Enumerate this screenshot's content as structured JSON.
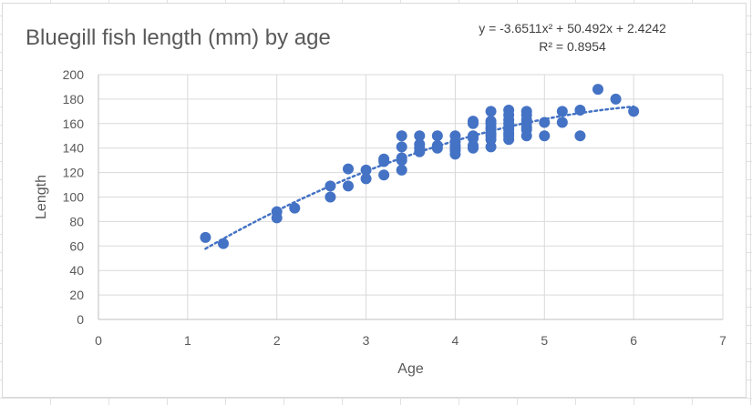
{
  "chart_data": {
    "type": "scatter",
    "title": "Bluegill fish length (mm) by age",
    "xlabel": "Age",
    "ylabel": "Length",
    "xlim": [
      0,
      7
    ],
    "ylim": [
      0,
      200
    ],
    "x_ticks": [
      "0",
      "1",
      "2",
      "3",
      "4",
      "5",
      "6",
      "7"
    ],
    "y_ticks": [
      "0",
      "20",
      "40",
      "60",
      "80",
      "100",
      "120",
      "140",
      "160",
      "180",
      "200"
    ],
    "grid": true,
    "marker_color": "#4472c4",
    "trendline": {
      "type": "polynomial",
      "coefficients": [
        -3.6511,
        50.492,
        2.4242
      ],
      "x_range": [
        1.2,
        6
      ],
      "style": "dotted",
      "color": "#4472c4",
      "equation_label": "y = -3.6511x² + 50.492x + 2.4242",
      "r2_label": "R² = 0.8954"
    },
    "points": [
      [
        1.2,
        67
      ],
      [
        1.4,
        62
      ],
      [
        2.0,
        88
      ],
      [
        2.0,
        83
      ],
      [
        2.2,
        91
      ],
      [
        2.6,
        109
      ],
      [
        2.6,
        100
      ],
      [
        2.8,
        123
      ],
      [
        2.8,
        109
      ],
      [
        3.0,
        122
      ],
      [
        3.0,
        115
      ],
      [
        3.2,
        131
      ],
      [
        3.2,
        129
      ],
      [
        3.2,
        118
      ],
      [
        3.4,
        150
      ],
      [
        3.4,
        141
      ],
      [
        3.4,
        132
      ],
      [
        3.4,
        130
      ],
      [
        3.4,
        122
      ],
      [
        3.6,
        150
      ],
      [
        3.6,
        143
      ],
      [
        3.6,
        140
      ],
      [
        3.6,
        137
      ],
      [
        3.8,
        150
      ],
      [
        3.8,
        142
      ],
      [
        3.8,
        140
      ],
      [
        4.0,
        150
      ],
      [
        4.0,
        145
      ],
      [
        4.0,
        142
      ],
      [
        4.0,
        140
      ],
      [
        4.0,
        138
      ],
      [
        4.0,
        135
      ],
      [
        4.2,
        162
      ],
      [
        4.2,
        160
      ],
      [
        4.2,
        150
      ],
      [
        4.2,
        148
      ],
      [
        4.2,
        142
      ],
      [
        4.2,
        140
      ],
      [
        4.4,
        170
      ],
      [
        4.4,
        162
      ],
      [
        4.4,
        160
      ],
      [
        4.4,
        157
      ],
      [
        4.4,
        155
      ],
      [
        4.4,
        152
      ],
      [
        4.4,
        150
      ],
      [
        4.4,
        147
      ],
      [
        4.4,
        141
      ],
      [
        4.6,
        171
      ],
      [
        4.6,
        167
      ],
      [
        4.6,
        163
      ],
      [
        4.6,
        160
      ],
      [
        4.6,
        157
      ],
      [
        4.6,
        155
      ],
      [
        4.6,
        152
      ],
      [
        4.6,
        150
      ],
      [
        4.6,
        147
      ],
      [
        4.8,
        170
      ],
      [
        4.8,
        167
      ],
      [
        4.8,
        163
      ],
      [
        4.8,
        160
      ],
      [
        4.8,
        157
      ],
      [
        4.8,
        155
      ],
      [
        4.8,
        150
      ],
      [
        5.0,
        161
      ],
      [
        5.0,
        150
      ],
      [
        5.2,
        170
      ],
      [
        5.2,
        161
      ],
      [
        5.4,
        171
      ],
      [
        5.4,
        150
      ],
      [
        5.6,
        188
      ],
      [
        5.8,
        180
      ],
      [
        6.0,
        170
      ]
    ]
  }
}
